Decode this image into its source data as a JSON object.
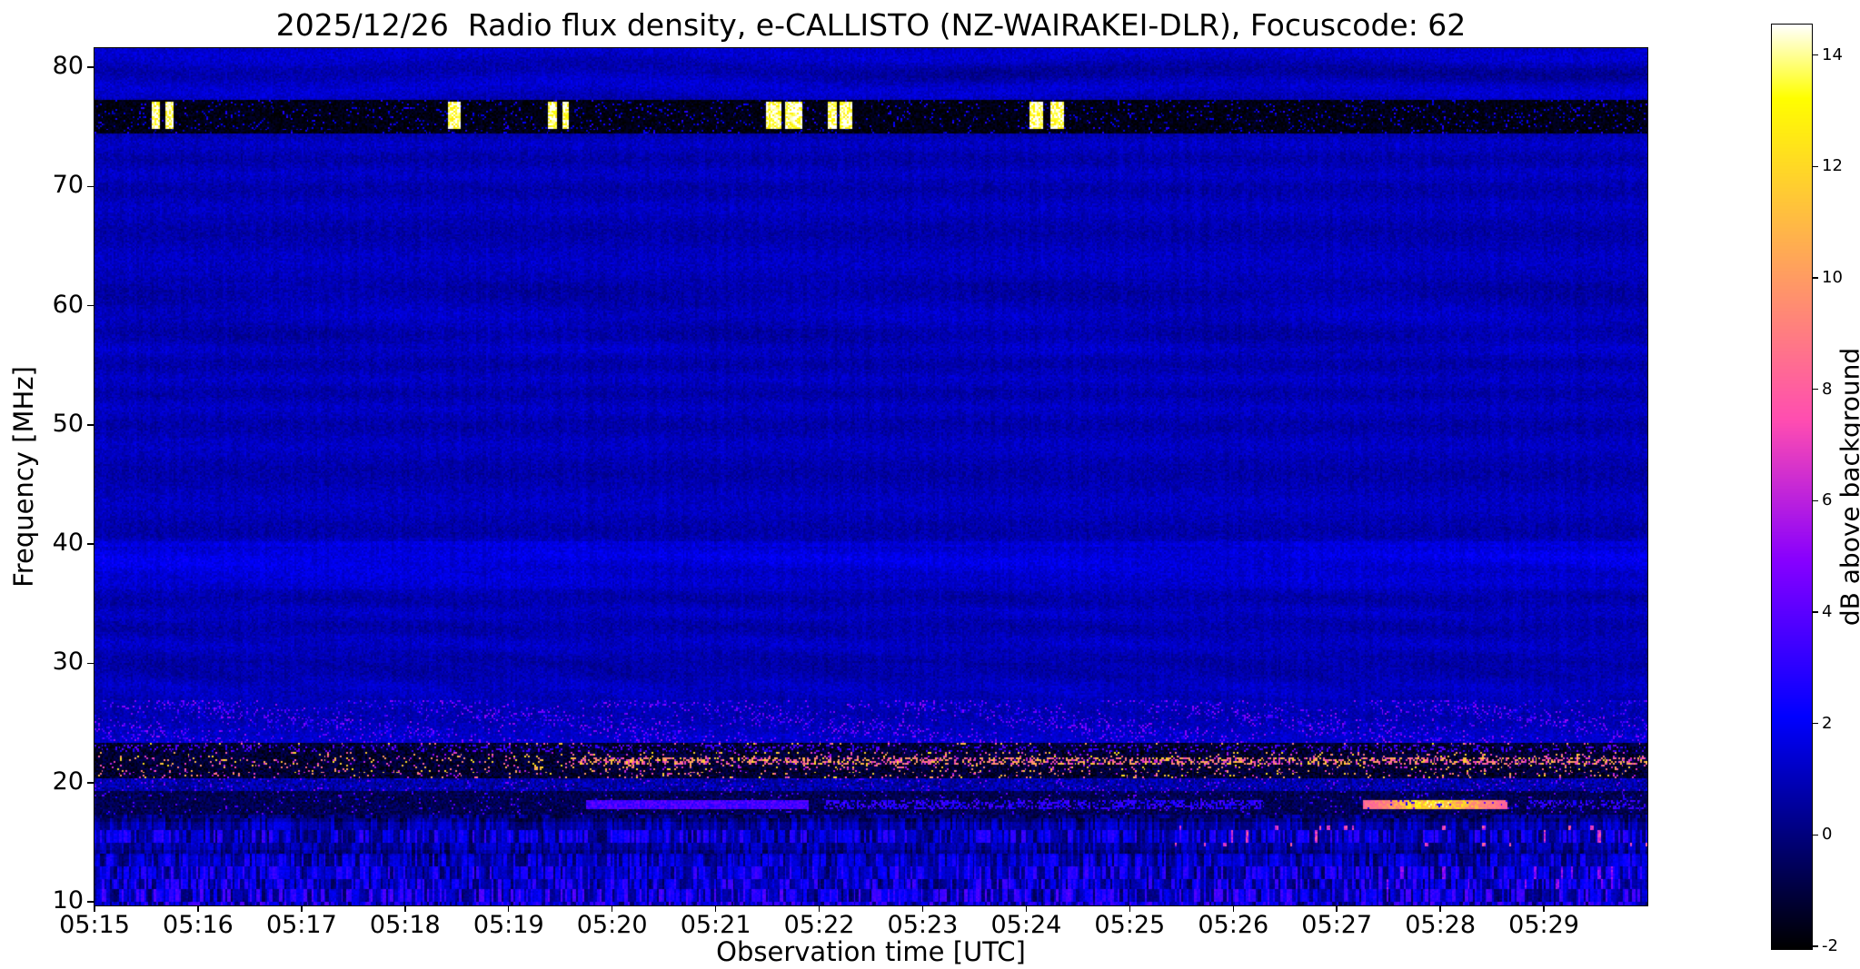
{
  "figure": {
    "title": "2025/12/26  Radio flux density, e-CALLISTO (NZ-WAIRAKEI-DLR), Focuscode: 62",
    "xlabel": "Observation time [UTC]",
    "ylabel": "Frequency [MHz]",
    "colorbar_label": "dB above background",
    "date": "2025/12/26",
    "instrument": "e-CALLISTO (NZ-WAIRAKEI-DLR)",
    "focuscode": "62"
  },
  "chart_data": {
    "type": "heatmap",
    "title": "2025/12/26  Radio flux density, e-CALLISTO (NZ-WAIRAKEI-DLR), Focuscode: 62",
    "xlabel": "Observation time [UTC]",
    "ylabel": "Frequency [MHz]",
    "x_ticks": [
      "05:15",
      "05:16",
      "05:17",
      "05:18",
      "05:19",
      "05:20",
      "05:21",
      "05:22",
      "05:23",
      "05:24",
      "05:25",
      "05:26",
      "05:27",
      "05:28",
      "05:29"
    ],
    "x_tick_minutes": [
      0,
      1,
      2,
      3,
      4,
      5,
      6,
      7,
      8,
      9,
      10,
      11,
      12,
      13,
      14
    ],
    "x_range_minutes": [
      0,
      15
    ],
    "start_time_utc": "05:15",
    "end_time_utc": "05:30",
    "y_ticks": [
      10,
      20,
      30,
      40,
      50,
      60,
      70,
      80
    ],
    "y_range_mhz": [
      9.7,
      81.6
    ],
    "colorbar": {
      "label": "dB above background",
      "ticks": [
        -2,
        0,
        2,
        4,
        6,
        8,
        10,
        12,
        14
      ],
      "range": [
        -2.05,
        14.55
      ],
      "colormap": "gnuplot2"
    },
    "background_level_db": 0.9,
    "features": {
      "rfi_dark_band_mhz": [
        74.35,
        77.3
      ],
      "burst_band_mhz": [
        74.9,
        77.05
      ],
      "burst_level_db": 14,
      "burst_times_min": [
        [
          0.55,
          0.63
        ],
        [
          0.69,
          0.77
        ],
        [
          3.42,
          3.53
        ],
        [
          4.39,
          4.47
        ],
        [
          4.51,
          4.59
        ],
        [
          6.49,
          6.63
        ],
        [
          6.67,
          6.84
        ],
        [
          7.08,
          7.17
        ],
        [
          7.2,
          7.31
        ],
        [
          9.04,
          9.16
        ],
        [
          9.23,
          9.37
        ]
      ],
      "enhanced_band_mhz": [
        36.2,
        40.4
      ],
      "enhanced_band_center_mhz": 38.3,
      "enhanced_band_extra_db": 0.95,
      "speckle_band_mhz": [
        23.3,
        27.0
      ],
      "dark_noisy_band_mhz": [
        20.3,
        23.3
      ],
      "bright_speckle_line_mhz": 21.8,
      "blue_streak": {
        "f_mhz": 18.2,
        "t_min": [
          4.75,
          6.9
        ],
        "level_db": 3.5
      },
      "dotted_streak": {
        "f_mhz": 18.2,
        "t_min": [
          7.05,
          11.3
        ],
        "level_db": 2.8
      },
      "orange_streak": {
        "f_mhz": 18.3,
        "t_min": [
          12.25,
          13.65
        ],
        "level_db": 10
      },
      "striped_noise_region_mhz": [
        9.7,
        17.3
      ]
    }
  }
}
